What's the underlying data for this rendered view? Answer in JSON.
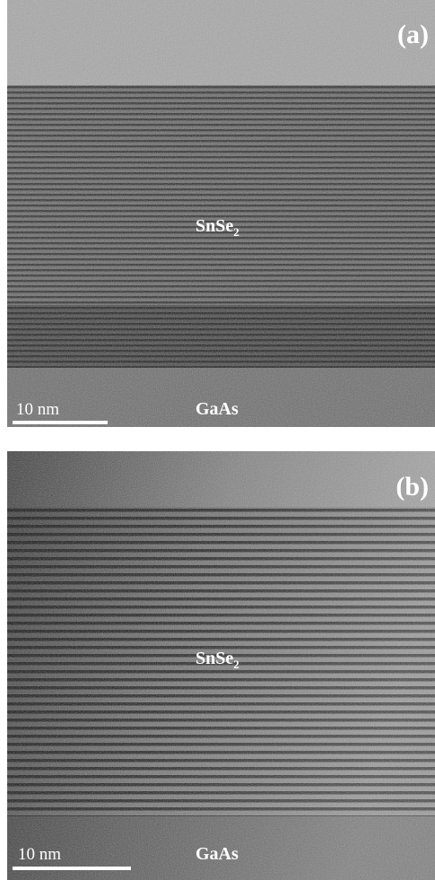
{
  "panels": [
    {
      "label": "(a)",
      "film": {
        "text": "SnSe",
        "subscript": "2"
      },
      "substrate": "GaAs",
      "scale_bar": "10 nm"
    },
    {
      "label": "(b)",
      "film": {
        "text": "SnSe",
        "subscript": "2"
      },
      "substrate": "GaAs",
      "scale_bar": "10 nm"
    }
  ]
}
